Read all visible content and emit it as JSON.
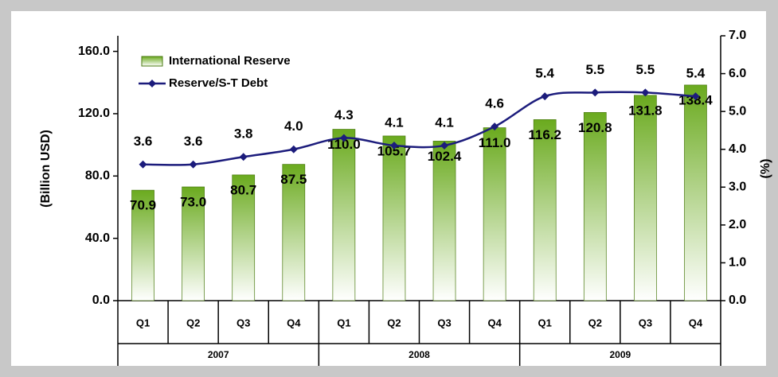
{
  "chart_data": {
    "type": "bar-line",
    "ylabel": "(Billion USD)",
    "y2label": "(%)",
    "categories": [
      "Q1",
      "Q2",
      "Q3",
      "Q4",
      "Q1",
      "Q2",
      "Q3",
      "Q4",
      "Q1",
      "Q2",
      "Q3",
      "Q4"
    ],
    "groups": [
      "2007",
      "2008",
      "2009"
    ],
    "series": [
      {
        "name": "International Reserve",
        "type": "bar",
        "color": "#6aaa1e",
        "values": [
          70.9,
          73.0,
          80.7,
          87.5,
          110.0,
          105.7,
          102.4,
          111.0,
          116.2,
          120.8,
          131.8,
          138.4
        ],
        "value_labels": [
          "70.9",
          "73.0",
          "80.7",
          "87.5",
          "110.0",
          "105.7",
          "102.4",
          "111.0",
          "116.2",
          "120.8",
          "131.8",
          "138.4"
        ]
      },
      {
        "name": "Reserve/S-T Debt",
        "type": "line",
        "color": "#1c1c7c",
        "axis": "y2",
        "values": [
          3.6,
          3.6,
          3.8,
          4.0,
          4.3,
          4.1,
          4.1,
          4.6,
          5.4,
          5.5,
          5.5,
          5.4
        ],
        "value_labels": [
          "3.6",
          "3.6",
          "3.8",
          "4.0",
          "4.3",
          "4.1",
          "4.1",
          "4.6",
          "5.4",
          "5.5",
          "5.5",
          "5.4"
        ]
      }
    ],
    "ylim": [
      0,
      170
    ],
    "yticks": [
      {
        "value": 0,
        "label": "0.0"
      },
      {
        "value": 40,
        "label": "40.0"
      },
      {
        "value": 80,
        "label": "80.0"
      },
      {
        "value": 120,
        "label": "120.0"
      },
      {
        "value": 160,
        "label": "160.0"
      }
    ],
    "y2lim": [
      0,
      7
    ],
    "y2ticks": [
      {
        "value": 0,
        "label": "0.0"
      },
      {
        "value": 1,
        "label": "1.0"
      },
      {
        "value": 2,
        "label": "2.0"
      },
      {
        "value": 3,
        "label": "3.0"
      },
      {
        "value": 4,
        "label": "4.0"
      },
      {
        "value": 5,
        "label": "5.0"
      },
      {
        "value": 6,
        "label": "6.0"
      },
      {
        "value": 7,
        "label": "7.0"
      }
    ],
    "legend": "upper left"
  }
}
